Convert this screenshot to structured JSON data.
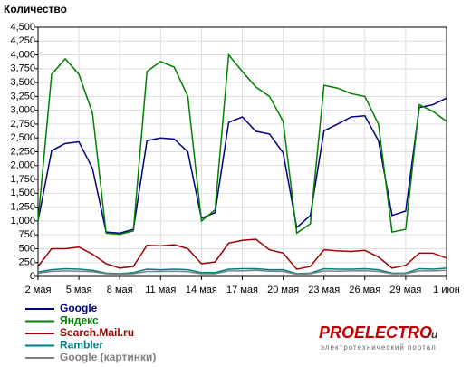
{
  "chart_data": {
    "type": "line",
    "title": "Количество",
    "categories": [
      "2 мая",
      null,
      null,
      "5 мая",
      null,
      null,
      "8 мая",
      null,
      null,
      "11 мая",
      null,
      null,
      "14 мая",
      null,
      null,
      "17 мая",
      null,
      null,
      "20 мая",
      null,
      null,
      "23 мая",
      null,
      null,
      "26 мая",
      null,
      null,
      "29 мая",
      null,
      null,
      "1 июн"
    ],
    "series": [
      {
        "name": "Google",
        "color": "#000080",
        "values": [
          1000,
          2270,
          2400,
          2430,
          1950,
          800,
          780,
          850,
          2450,
          2500,
          2480,
          2250,
          1050,
          1150,
          2780,
          2880,
          2620,
          2570,
          2230,
          880,
          1100,
          2630,
          2750,
          2880,
          2900,
          2450,
          1100,
          1180,
          3050,
          3100,
          3220
        ]
      },
      {
        "name": "Яндекс",
        "color": "#008000",
        "values": [
          1000,
          3650,
          3930,
          3650,
          2950,
          780,
          760,
          820,
          3700,
          3880,
          3780,
          3250,
          1000,
          1200,
          4000,
          3700,
          3420,
          3250,
          2800,
          780,
          950,
          3450,
          3400,
          3300,
          3250,
          2750,
          800,
          850,
          3100,
          2980,
          2800
        ]
      },
      {
        "name": "Search.Mail.ru",
        "color": "#a00000",
        "values": [
          180,
          500,
          500,
          530,
          400,
          230,
          150,
          180,
          560,
          550,
          570,
          500,
          230,
          260,
          600,
          650,
          670,
          480,
          420,
          130,
          180,
          480,
          460,
          450,
          470,
          350,
          150,
          200,
          420,
          420,
          330
        ]
      },
      {
        "name": "Rambler",
        "color": "#008080",
        "values": [
          80,
          120,
          140,
          130,
          110,
          60,
          50,
          70,
          130,
          120,
          130,
          120,
          70,
          70,
          130,
          140,
          140,
          120,
          120,
          50,
          60,
          140,
          130,
          130,
          140,
          120,
          60,
          60,
          140,
          130,
          150
        ]
      },
      {
        "name": "Google (картинки)",
        "color": "#808080",
        "values": [
          60,
          90,
          100,
          95,
          85,
          50,
          40,
          50,
          90,
          90,
          95,
          85,
          50,
          50,
          100,
          100,
          110,
          95,
          90,
          40,
          50,
          100,
          95,
          100,
          105,
          90,
          50,
          50,
          100,
          100,
          110
        ]
      }
    ],
    "ylim": [
      0,
      4500
    ],
    "yticks": [
      0,
      250,
      500,
      750,
      {
        "value": 1000,
        "label": "1,000"
      },
      {
        "value": 1250,
        "label": "1,250"
      },
      {
        "value": 1500,
        "label": "1,500"
      },
      {
        "value": 1750,
        "label": "1,750"
      },
      {
        "value": 2000,
        "label": "2,000"
      },
      {
        "value": 2250,
        "label": "2,250"
      },
      {
        "value": 2500,
        "label": "2,500"
      },
      {
        "value": 2750,
        "label": "2,750"
      },
      {
        "value": 3000,
        "label": "3,000"
      },
      {
        "value": 3250,
        "label": "3,250"
      },
      {
        "value": 3500,
        "label": "3,500"
      },
      {
        "value": 3750,
        "label": "3,750"
      },
      {
        "value": 4000,
        "label": "4,000"
      },
      {
        "value": 4250,
        "label": "4,250"
      },
      {
        "value": 4500,
        "label": "4,500"
      }
    ],
    "grid": true
  },
  "branding": {
    "logo_main": "PROELECTRO",
    "logo_suffix": ".ru",
    "tagline": "электротехнический портал"
  }
}
